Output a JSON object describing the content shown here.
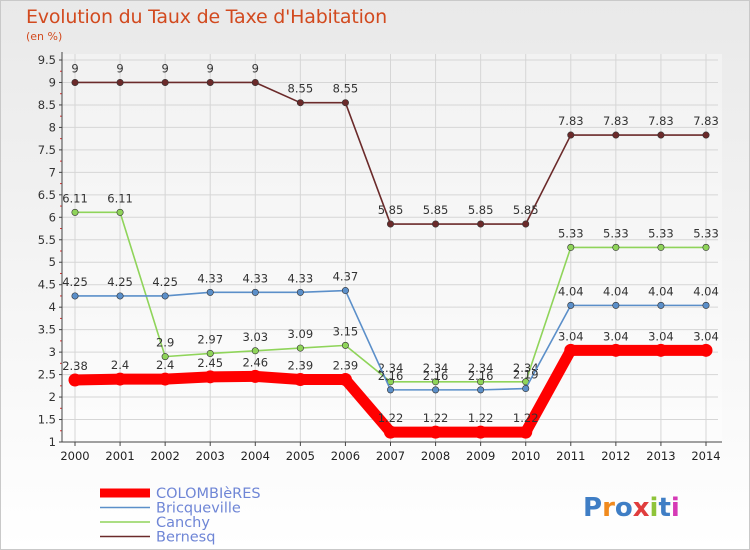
{
  "chart_data": {
    "type": "line",
    "title": "Evolution du Taux de Taxe d'Habitation",
    "subtitle": "(en %)",
    "x": [
      "2000",
      "2001",
      "2002",
      "2003",
      "2004",
      "2005",
      "2006",
      "2007",
      "2008",
      "2009",
      "2010",
      "2011",
      "2012",
      "2013",
      "2014"
    ],
    "ylim": [
      1,
      9.5
    ],
    "yticks": [
      "1",
      "1.5",
      "2",
      "2.5",
      "3",
      "3.5",
      "4",
      "4.5",
      "5",
      "5.5",
      "6",
      "6.5",
      "7",
      "7.5",
      "8",
      "8.5",
      "9",
      "9.5"
    ],
    "grid": true,
    "legend_position": "bottom-left",
    "series": [
      {
        "name": "COLOMBIèRES",
        "color": "#ff0000",
        "values": [
          2.38,
          2.4,
          2.4,
          2.45,
          2.46,
          2.39,
          2.39,
          1.22,
          1.22,
          1.22,
          1.22,
          3.04,
          3.04,
          3.04,
          3.04
        ],
        "labels": [
          "2.38",
          "2.4",
          "2.4",
          "2.45",
          "2.46",
          "2.39",
          "2.39",
          "1.22",
          "1.22",
          "1.22",
          "1.22",
          "3.04",
          "3.04",
          "3.04",
          "3.04"
        ]
      },
      {
        "name": "Bricqueville",
        "color": "#5b8fc9",
        "values": [
          4.25,
          4.25,
          4.25,
          4.33,
          4.33,
          4.33,
          4.37,
          2.16,
          2.16,
          2.16,
          2.19,
          4.04,
          4.04,
          4.04,
          4.04
        ],
        "labels": [
          "4.25",
          "4.25",
          "4.25",
          "4.33",
          "4.33",
          "4.33",
          "4.37",
          "2.16",
          "2.16",
          "2.16",
          "2.19",
          "4.04",
          "4.04",
          "4.04",
          "4.04"
        ]
      },
      {
        "name": "Canchy",
        "color": "#8fd45a",
        "values": [
          6.11,
          6.11,
          2.9,
          2.97,
          3.03,
          3.09,
          3.15,
          2.34,
          2.34,
          2.34,
          2.34,
          5.33,
          5.33,
          5.33,
          5.33
        ],
        "labels": [
          "6.11",
          "6.11",
          "2.9",
          "2.97",
          "3.03",
          "3.09",
          "3.15",
          "2.34",
          "2.34",
          "2.34",
          "2.34",
          "5.33",
          "5.33",
          "5.33",
          "5.33"
        ]
      },
      {
        "name": "Bernesq",
        "color": "#6b2a2a",
        "values": [
          9,
          9,
          9,
          9,
          9,
          8.55,
          8.55,
          5.85,
          5.85,
          5.85,
          5.85,
          7.83,
          7.83,
          7.83,
          7.83
        ],
        "labels": [
          "9",
          "9",
          "9",
          "9",
          "9",
          "8.55",
          "8.55",
          "5.85",
          "5.85",
          "5.85",
          "5.85",
          "7.83",
          "7.83",
          "7.83",
          "7.83"
        ]
      }
    ]
  },
  "logo_text": "Proxiti"
}
